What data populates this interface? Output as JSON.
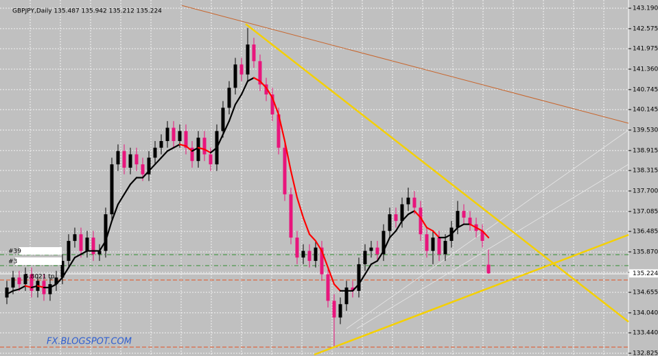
{
  "chart_data": {
    "type": "candlestick",
    "title": "GBPJPY,Daily  135.487 135.942 135.212 135.224",
    "ylim": [
      132.784,
      143.437
    ],
    "yticks": [
      {
        "value": 143.19,
        "label": "143.190"
      },
      142.575,
      141.975,
      {
        "value": 141.36,
        "label": "141.360"
      },
      140.745,
      140.145,
      {
        "value": 139.53,
        "label": "139.530"
      },
      138.915,
      138.315,
      {
        "value": 137.7,
        "label": "137.700"
      },
      137.085,
      136.485,
      {
        "value": 135.87,
        "label": "135.870"
      },
      135.255,
      134.655,
      {
        "value": 134.04,
        "label": "134.040"
      },
      {
        "value": 133.44,
        "label": "133.440"
      },
      132.825
    ],
    "grid": true,
    "up_color": "#000000",
    "down_color": "#e8157c",
    "ma_up_color": "#000000",
    "ma_down_color": "#ff0000",
    "current_price": {
      "value": 135.224,
      "label": "135.224"
    },
    "order_labels": [
      "#39",
      "#3",
      "5.8021 tp"
    ],
    "watermark": "FX.BLOGSPOT.COM",
    "ohlc": [
      [
        134.5,
        135.0,
        134.3,
        134.8
      ],
      [
        134.8,
        135.3,
        134.6,
        135.1
      ],
      [
        135.1,
        135.3,
        134.7,
        134.9
      ],
      [
        134.9,
        135.4,
        134.7,
        135.2
      ],
      [
        135.2,
        135.4,
        134.5,
        134.7
      ],
      [
        134.7,
        135.2,
        134.5,
        135.0
      ],
      [
        135.0,
        135.2,
        134.4,
        134.6
      ],
      [
        134.6,
        135.1,
        134.4,
        134.9
      ],
      [
        134.9,
        135.3,
        134.7,
        135.1
      ],
      [
        135.1,
        135.8,
        134.9,
        135.6
      ],
      [
        135.6,
        136.4,
        135.4,
        136.2
      ],
      [
        136.2,
        136.6,
        136.0,
        136.4
      ],
      [
        136.4,
        136.6,
        135.7,
        135.9
      ],
      [
        135.9,
        136.5,
        135.7,
        136.3
      ],
      [
        136.3,
        136.5,
        135.6,
        135.8
      ],
      [
        135.8,
        136.1,
        135.6,
        135.9
      ],
      [
        135.9,
        137.2,
        135.7,
        137.0
      ],
      [
        137.0,
        138.7,
        136.8,
        138.5
      ],
      [
        138.5,
        139.1,
        138.3,
        138.9
      ],
      [
        138.9,
        139.1,
        138.2,
        138.4
      ],
      [
        138.4,
        139.0,
        138.2,
        138.8
      ],
      [
        138.8,
        139.0,
        138.3,
        138.5
      ],
      [
        138.5,
        138.7,
        138.0,
        138.2
      ],
      [
        138.2,
        138.9,
        138.0,
        138.7
      ],
      [
        138.7,
        139.2,
        138.5,
        139.0
      ],
      [
        139.0,
        139.4,
        138.8,
        139.2
      ],
      [
        139.2,
        139.8,
        139.0,
        139.6
      ],
      [
        139.6,
        139.8,
        139.0,
        139.2
      ],
      [
        139.2,
        139.7,
        139.0,
        139.5
      ],
      [
        139.5,
        139.7,
        138.8,
        139.0
      ],
      [
        139.0,
        139.2,
        138.4,
        138.6
      ],
      [
        138.6,
        139.5,
        138.4,
        139.3
      ],
      [
        139.3,
        139.5,
        138.6,
        138.8
      ],
      [
        138.8,
        139.0,
        138.3,
        138.5
      ],
      [
        138.5,
        139.7,
        138.3,
        139.5
      ],
      [
        139.5,
        140.4,
        139.3,
        140.2
      ],
      [
        140.2,
        141.0,
        140.0,
        140.8
      ],
      [
        140.8,
        141.7,
        140.6,
        141.5
      ],
      [
        141.5,
        141.7,
        141.0,
        141.2
      ],
      [
        141.2,
        142.6,
        141.0,
        142.1
      ],
      [
        142.1,
        142.3,
        141.4,
        141.6
      ],
      [
        141.6,
        141.8,
        140.7,
        140.9
      ],
      [
        140.9,
        141.1,
        140.4,
        140.6
      ],
      [
        140.6,
        140.8,
        139.8,
        140.0
      ],
      [
        140.0,
        140.2,
        138.8,
        139.0
      ],
      [
        139.0,
        139.2,
        137.4,
        137.6
      ],
      [
        137.6,
        137.8,
        136.1,
        136.3
      ],
      [
        136.3,
        136.5,
        135.5,
        135.7
      ],
      [
        135.7,
        136.1,
        135.5,
        135.9
      ],
      [
        135.9,
        136.1,
        135.4,
        135.6
      ],
      [
        135.6,
        136.2,
        135.4,
        136.0
      ],
      [
        136.0,
        136.2,
        135.0,
        135.2
      ],
      [
        135.2,
        135.4,
        134.2,
        134.4
      ],
      [
        134.4,
        134.6,
        133.0,
        133.9
      ],
      [
        133.9,
        134.5,
        133.7,
        134.3
      ],
      [
        134.3,
        135.0,
        134.1,
        134.8
      ],
      [
        134.8,
        135.0,
        134.5,
        134.7
      ],
      [
        134.7,
        135.7,
        134.5,
        135.5
      ],
      [
        135.5,
        136.1,
        135.3,
        135.9
      ],
      [
        135.9,
        136.2,
        135.7,
        136.0
      ],
      [
        136.0,
        136.2,
        135.6,
        135.8
      ],
      [
        135.8,
        136.7,
        135.6,
        136.5
      ],
      [
        136.5,
        137.2,
        136.3,
        137.0
      ],
      [
        137.0,
        137.2,
        136.6,
        136.8
      ],
      [
        136.8,
        137.5,
        136.6,
        137.3
      ],
      [
        137.3,
        137.8,
        137.1,
        137.5
      ],
      [
        137.5,
        137.7,
        137.0,
        137.2
      ],
      [
        137.2,
        137.4,
        136.2,
        136.4
      ],
      [
        136.4,
        136.6,
        135.7,
        135.9
      ],
      [
        135.9,
        136.5,
        135.5,
        136.3
      ],
      [
        136.3,
        136.5,
        135.6,
        135.8
      ],
      [
        135.8,
        136.4,
        135.6,
        136.2
      ],
      [
        136.2,
        136.8,
        136.0,
        136.6
      ],
      [
        136.6,
        137.4,
        136.4,
        137.1
      ],
      [
        137.1,
        137.3,
        136.7,
        136.9
      ],
      [
        136.9,
        137.1,
        136.5,
        136.7
      ],
      [
        136.7,
        136.9,
        136.3,
        136.5
      ],
      [
        136.5,
        136.7,
        136.0,
        136.2
      ],
      [
        135.487,
        135.942,
        135.212,
        135.224
      ]
    ],
    "ma": [
      134.6,
      134.7,
      134.75,
      134.85,
      134.8,
      134.85,
      134.8,
      134.8,
      134.9,
      135.1,
      135.4,
      135.7,
      135.8,
      135.9,
      135.9,
      135.9,
      136.2,
      136.8,
      137.3,
      137.6,
      137.9,
      138.1,
      138.1,
      138.3,
      138.5,
      138.7,
      138.9,
      139.0,
      139.1,
      139.05,
      138.9,
      139.0,
      138.95,
      138.85,
      139.0,
      139.4,
      139.8,
      140.3,
      140.6,
      141.0,
      141.1,
      141.0,
      140.8,
      140.5,
      140.0,
      139.2,
      138.3,
      137.5,
      136.9,
      136.4,
      136.2,
      135.9,
      135.4,
      134.9,
      134.7,
      134.7,
      134.7,
      134.9,
      135.2,
      135.5,
      135.6,
      135.9,
      136.3,
      136.5,
      136.8,
      137.0,
      137.1,
      136.9,
      136.6,
      136.5,
      136.3,
      136.3,
      136.4,
      136.6,
      136.7,
      136.7,
      136.6,
      136.5,
      136.3
    ]
  }
}
